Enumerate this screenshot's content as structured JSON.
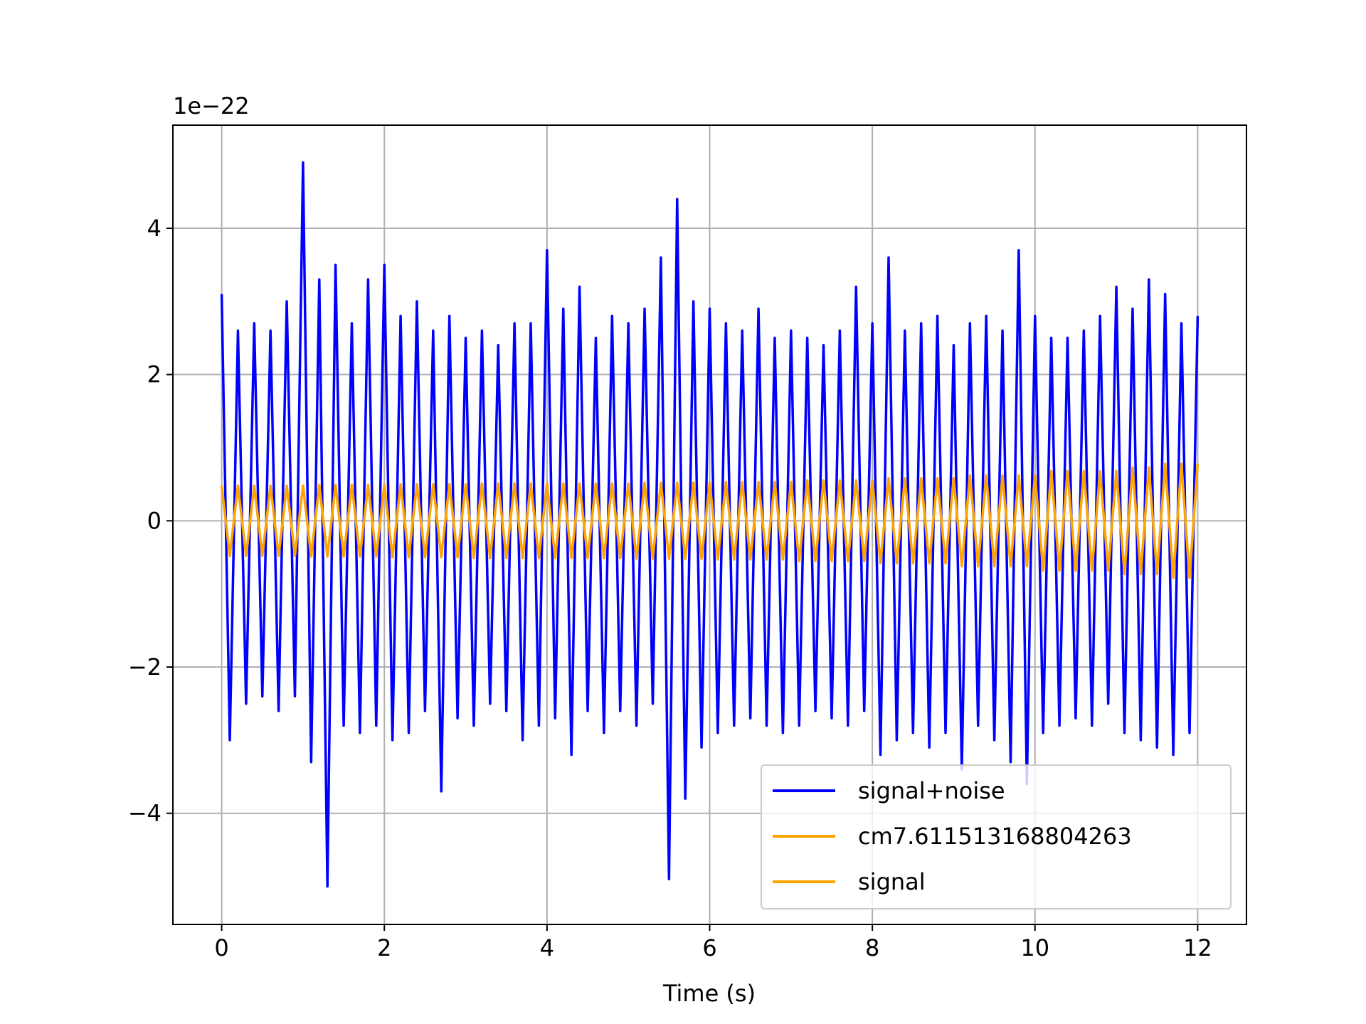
{
  "chart_data": {
    "type": "line",
    "xlabel": "Time (s)",
    "offset_text": "1e−22",
    "x": [
      0,
      0.1,
      0.2,
      0.3,
      0.4,
      0.5,
      0.6,
      0.7,
      0.8,
      0.9,
      1,
      1.1,
      1.2,
      1.3,
      1.4,
      1.5,
      1.6,
      1.7,
      1.8,
      1.9,
      2,
      2.1,
      2.2,
      2.3,
      2.4,
      2.5,
      2.6,
      2.7,
      2.8,
      2.9,
      3,
      3.1,
      3.2,
      3.3,
      3.4,
      3.5,
      3.6,
      3.7,
      3.8,
      3.9,
      4,
      4.1,
      4.2,
      4.3,
      4.4,
      4.5,
      4.6,
      4.7,
      4.8,
      4.9,
      5,
      5.1,
      5.2,
      5.3,
      5.4,
      5.5,
      5.6,
      5.7,
      5.8,
      5.9,
      6,
      6.1,
      6.2,
      6.3,
      6.4,
      6.5,
      6.6,
      6.7,
      6.8,
      6.9,
      7,
      7.1,
      7.2,
      7.3,
      7.4,
      7.5,
      7.6,
      7.7,
      7.8,
      7.9,
      8,
      8.1,
      8.2,
      8.3,
      8.4,
      8.5,
      8.6,
      8.7,
      8.8,
      8.9,
      9,
      9.1,
      9.2,
      9.3,
      9.4,
      9.5,
      9.6,
      9.7,
      9.8,
      9.9,
      10,
      10.1,
      10.2,
      10.3,
      10.4,
      10.5,
      10.6,
      10.7,
      10.8,
      10.9,
      11,
      11.1,
      11.2,
      11.3,
      11.4,
      11.5,
      11.6,
      11.7,
      11.8,
      11.9,
      12
    ],
    "series": [
      {
        "name": "signal+noise",
        "color": "#0000ff",
        "values": [
          3.1,
          -3.0,
          2.6,
          -2.5,
          2.7,
          -2.4,
          2.6,
          -2.6,
          3.0,
          -2.4,
          4.9,
          -3.3,
          3.3,
          -5.0,
          3.5,
          -2.8,
          2.7,
          -2.9,
          3.3,
          -2.8,
          3.5,
          -3.0,
          2.8,
          -2.9,
          3.0,
          -2.6,
          2.6,
          -3.7,
          2.8,
          -2.7,
          2.5,
          -2.8,
          2.6,
          -2.5,
          2.4,
          -2.6,
          2.7,
          -3.0,
          2.7,
          -2.8,
          3.7,
          -2.7,
          2.9,
          -3.2,
          3.2,
          -2.6,
          2.5,
          -2.9,
          2.8,
          -2.6,
          2.7,
          -2.8,
          2.9,
          -2.5,
          3.6,
          -4.9,
          4.4,
          -3.8,
          3.0,
          -3.1,
          2.9,
          -2.9,
          2.7,
          -2.8,
          2.6,
          -2.7,
          2.9,
          -2.8,
          2.5,
          -2.9,
          2.6,
          -2.8,
          2.5,
          -2.6,
          2.4,
          -2.7,
          2.6,
          -2.8,
          3.2,
          -2.6,
          2.7,
          -3.2,
          3.6,
          -3.0,
          2.6,
          -2.9,
          2.7,
          -3.1,
          2.8,
          -2.9,
          2.4,
          -3.4,
          2.7,
          -2.8,
          2.8,
          -3.0,
          2.6,
          -3.3,
          3.7,
          -3.6,
          2.8,
          -2.9,
          2.5,
          -2.8,
          2.5,
          -2.7,
          2.6,
          -2.8,
          2.8,
          -2.5,
          3.2,
          -2.9,
          2.9,
          -3.0,
          3.3,
          -3.1,
          3.1,
          -3.2,
          2.7,
          -2.9,
          2.8
        ]
      },
      {
        "name": "cm7.611513168804263",
        "color": "#ffa500",
        "values": [
          null,
          null,
          null,
          null,
          null,
          null,
          null,
          null,
          null,
          null,
          null,
          null,
          null,
          null,
          null,
          null,
          null,
          null,
          null,
          null,
          null,
          null,
          null,
          null,
          null,
          null,
          null,
          null,
          null,
          null,
          null,
          null,
          null,
          null,
          null,
          null,
          null,
          null,
          null,
          null,
          null,
          null,
          null,
          null,
          null,
          null,
          null,
          null,
          null,
          null,
          null,
          null,
          null,
          null,
          null,
          null,
          null,
          null,
          null,
          null,
          null,
          null,
          null,
          null,
          null,
          null,
          null,
          null,
          null,
          null,
          null,
          null,
          null,
          null,
          null,
          null,
          null,
          null,
          null,
          null,
          null,
          null,
          null,
          null,
          null,
          null,
          null,
          null,
          null,
          null,
          null,
          null,
          null,
          null,
          null,
          null,
          null,
          null,
          null,
          null,
          null,
          null,
          null,
          null,
          null,
          null,
          null,
          null,
          null,
          null,
          null,
          null,
          null,
          null,
          null,
          null,
          null,
          null,
          null,
          null,
          null
        ]
      },
      {
        "name": "signal",
        "color": "#ffa500",
        "values": [
          0.48,
          -0.48,
          0.48,
          -0.48,
          0.48,
          -0.48,
          0.48,
          -0.48,
          0.48,
          -0.48,
          0.48,
          -0.49,
          0.49,
          -0.49,
          0.49,
          -0.49,
          0.49,
          -0.49,
          0.49,
          -0.49,
          0.49,
          -0.5,
          0.5,
          -0.5,
          0.5,
          -0.5,
          0.5,
          -0.5,
          0.5,
          -0.5,
          0.5,
          -0.51,
          0.51,
          -0.51,
          0.51,
          -0.51,
          0.51,
          -0.51,
          0.51,
          -0.51,
          0.51,
          -0.51,
          0.51,
          -0.51,
          0.51,
          -0.51,
          0.51,
          -0.51,
          0.51,
          -0.51,
          0.51,
          -0.52,
          0.52,
          -0.52,
          0.52,
          -0.52,
          0.52,
          -0.52,
          0.52,
          -0.52,
          0.52,
          -0.53,
          0.53,
          -0.53,
          0.53,
          -0.53,
          0.53,
          -0.53,
          0.53,
          -0.53,
          0.53,
          -0.55,
          0.55,
          -0.55,
          0.55,
          -0.55,
          0.55,
          -0.55,
          0.55,
          -0.55,
          0.55,
          -0.58,
          0.58,
          -0.58,
          0.58,
          -0.58,
          0.58,
          -0.58,
          0.58,
          -0.58,
          0.58,
          -0.62,
          0.62,
          -0.62,
          0.62,
          -0.62,
          0.62,
          -0.62,
          0.62,
          -0.62,
          0.62,
          -0.68,
          0.68,
          -0.68,
          0.68,
          -0.68,
          0.68,
          -0.68,
          0.68,
          -0.68,
          0.68,
          -0.73,
          0.73,
          -0.73,
          0.73,
          -0.73,
          0.78,
          -0.78,
          0.78,
          -0.78,
          0.78
        ]
      }
    ],
    "xlim": [
      -0.6,
      12.6
    ],
    "xticks": [
      0,
      2,
      4,
      6,
      8,
      10,
      12
    ],
    "ylim": [
      -5.52,
      5.41
    ],
    "yticks": [
      {
        "value": -4,
        "label": "−4"
      },
      {
        "value": -2,
        "label": "−2"
      },
      0,
      2,
      4
    ],
    "grid": true,
    "legend": "lower right"
  }
}
